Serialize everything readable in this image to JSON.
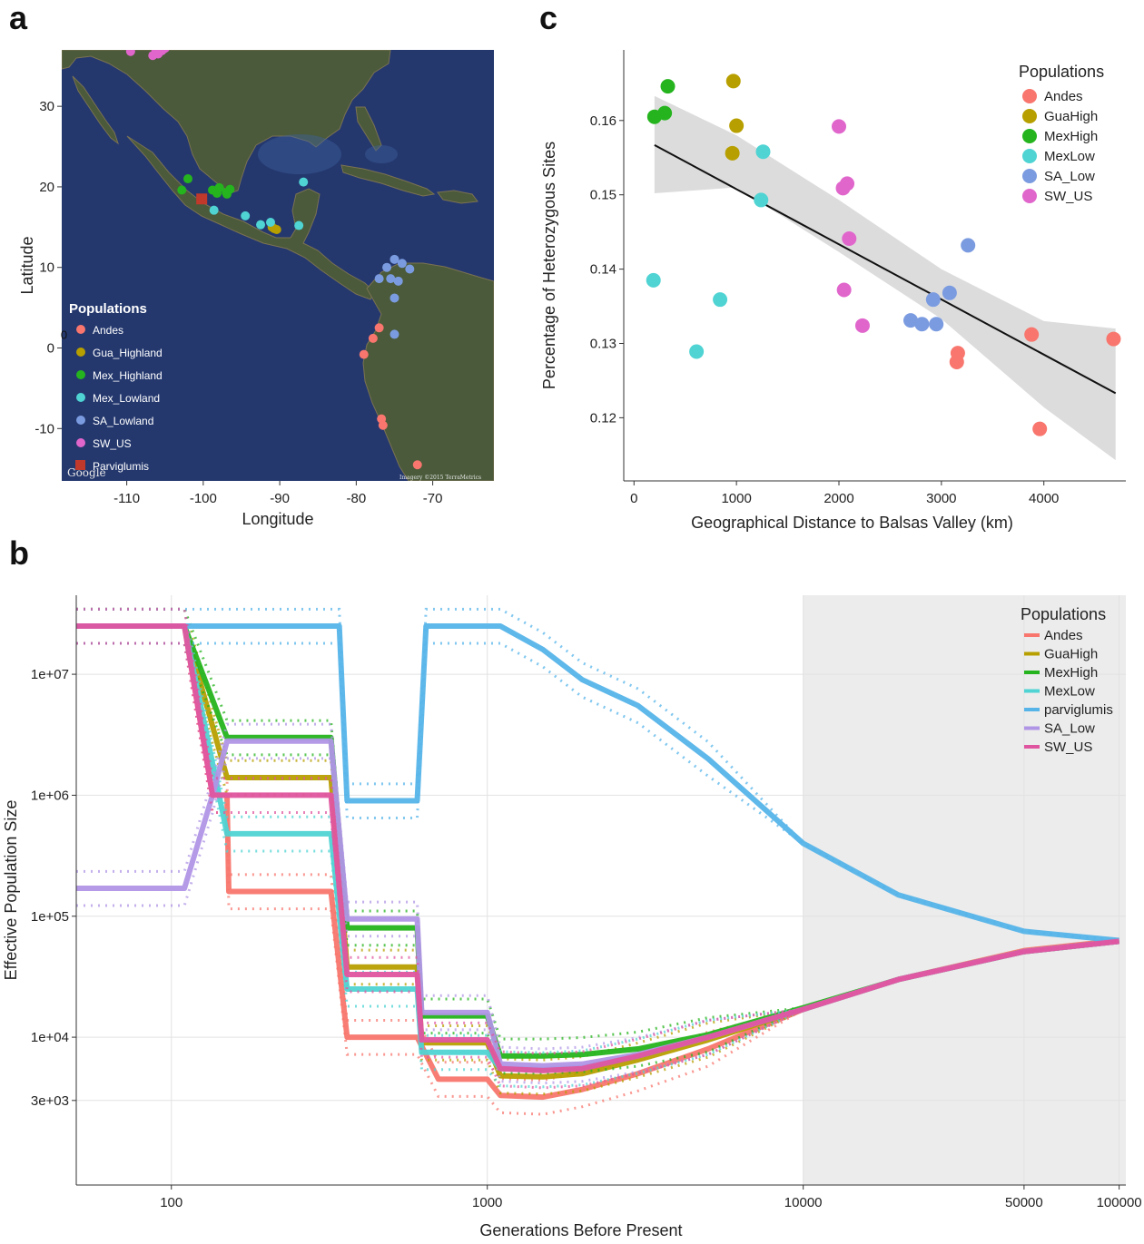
{
  "panels": {
    "a": {
      "letter": "a",
      "map_credit": "Google",
      "imagery_credit": "Imagery ©2015 TerraMetrics",
      "colors": {
        "ocean": "#24386e",
        "land": "#4a5a3a",
        "land_light": "#7b7253",
        "shallow": "#3d5f9c"
      },
      "legend": {
        "title": "Populations",
        "items": [
          {
            "label": "Andes",
            "color": "#f8766d",
            "shape": "circle"
          },
          {
            "label": "Gua_Highland",
            "color": "#b79f00",
            "shape": "circle"
          },
          {
            "label": "Mex_Highland",
            "color": "#25b41e",
            "shape": "circle"
          },
          {
            "label": "Mex_Lowland",
            "color": "#4fd3d3",
            "shape": "circle"
          },
          {
            "label": "SA_Lowland",
            "color": "#7b9be0",
            "shape": "circle"
          },
          {
            "label": "SW_US",
            "color": "#e066cc",
            "shape": "circle"
          },
          {
            "label": "Parviglumis",
            "color": "#c0392b",
            "shape": "square"
          }
        ]
      }
    },
    "b": {
      "letter": "b"
    },
    "c": {
      "letter": "c"
    }
  },
  "chart_data": [
    {
      "id": "a",
      "type": "scatter",
      "title": "",
      "xlabel": "Longitude",
      "ylabel": "Latitude",
      "xlim": [
        -118.5,
        -62
      ],
      "ylim": [
        -16.5,
        37
      ],
      "xticks": [
        -110,
        -100,
        -90,
        -80,
        -70
      ],
      "yticks": [
        -10,
        0,
        10,
        20,
        30
      ],
      "extra_label": {
        "text": "0",
        "x": -118.2,
        "y": 1.1
      },
      "series": [
        {
          "name": "Andes",
          "color": "#f8766d",
          "points": [
            [
              -77,
              2.5
            ],
            [
              -77.8,
              1.2
            ],
            [
              -79,
              -0.8
            ],
            [
              -76.7,
              -8.8
            ],
            [
              -76.5,
              -9.6
            ],
            [
              -72,
              -14.5
            ]
          ]
        },
        {
          "name": "Gua_Highland",
          "color": "#b79f00",
          "points": [
            [
              -91,
              15
            ],
            [
              -90.7,
              14.8
            ],
            [
              -90.4,
              14.7
            ]
          ]
        },
        {
          "name": "Mex_Highland",
          "color": "#25b41e",
          "points": [
            [
              -102,
              21
            ],
            [
              -102.8,
              19.6
            ],
            [
              -98.8,
              19.6
            ],
            [
              -97.9,
              19.9
            ],
            [
              -97,
              19.3
            ],
            [
              -96.5,
              19.7
            ],
            [
              -96.9,
              19.1
            ],
            [
              -98.2,
              19.2
            ]
          ]
        },
        {
          "name": "Mex_Lowland",
          "color": "#4fd3d3",
          "points": [
            [
              -98.6,
              17.1
            ],
            [
              -94.5,
              16.4
            ],
            [
              -92.5,
              15.3
            ],
            [
              -87.5,
              15.2
            ],
            [
              -86.9,
              20.6
            ],
            [
              -91.2,
              15.6
            ]
          ]
        },
        {
          "name": "SA_Lowland",
          "color": "#7b9be0",
          "points": [
            [
              -75,
              11
            ],
            [
              -76,
              10
            ],
            [
              -74,
              10.5
            ],
            [
              -77,
              8.6
            ],
            [
              -75.5,
              8.6
            ],
            [
              -74.5,
              8.3
            ],
            [
              -75,
              6.2
            ],
            [
              -75,
              1.7
            ],
            [
              -73,
              9.8
            ]
          ]
        },
        {
          "name": "SW_US",
          "color": "#e066cc",
          "points": [
            [
              -109.5,
              36.8
            ],
            [
              -106.6,
              36.3
            ],
            [
              -105.9,
              36.5
            ],
            [
              -105.4,
              36.9
            ],
            [
              -105,
              37.2
            ],
            [
              -106.2,
              37
            ]
          ]
        },
        {
          "name": "Parviglumis",
          "color": "#c0392b",
          "shape": "square",
          "points": [
            [
              -100.2,
              18.5
            ]
          ]
        }
      ]
    },
    {
      "id": "c",
      "type": "scatter",
      "title": "",
      "xlabel": "Geographical Distance to Balsas Valley (km)",
      "ylabel": "Percentage of Heterozygous Sites",
      "xlim": [
        -100,
        4800
      ],
      "ylim": [
        0.1115,
        0.1695
      ],
      "xticks": [
        0,
        1000,
        2000,
        3000,
        4000
      ],
      "yticks": [
        0.12,
        0.13,
        0.14,
        0.15,
        0.16
      ],
      "legend_title": "Populations",
      "legend_position": "top-right",
      "fit": {
        "x": [
          200,
          4700
        ],
        "y": [
          0.1567,
          0.1233
        ]
      },
      "confidence_band": {
        "x": [
          200,
          1000,
          2000,
          3000,
          4000,
          4700
        ],
        "lower": [
          0.1502,
          0.151,
          0.1423,
          0.1333,
          0.1214,
          0.1143
        ],
        "upper": [
          0.1633,
          0.158,
          0.1493,
          0.14,
          0.133,
          0.132
        ]
      },
      "series": [
        {
          "name": "Andes",
          "color": "#f8766d",
          "points": [
            [
              3880,
              0.1312
            ],
            [
              4680,
              0.1306
            ],
            [
              3160,
              0.1287
            ],
            [
              3150,
              0.1275
            ],
            [
              3960,
              0.1185
            ]
          ]
        },
        {
          "name": "GuaHigh",
          "color": "#b79f00",
          "points": [
            [
              970,
              0.1653
            ],
            [
              1000,
              0.1593
            ],
            [
              960,
              0.1556
            ]
          ]
        },
        {
          "name": "MexHigh",
          "color": "#25b41e",
          "points": [
            [
              330,
              0.1646
            ],
            [
              300,
              0.161
            ],
            [
              200,
              0.1605
            ]
          ]
        },
        {
          "name": "MexLow",
          "color": "#4fd3d3",
          "points": [
            [
              1260,
              0.1558
            ],
            [
              1240,
              0.1493
            ],
            [
              190,
              0.1385
            ],
            [
              840,
              0.1359
            ],
            [
              610,
              0.1289
            ]
          ]
        },
        {
          "name": "SA_Low",
          "color": "#7b9be0",
          "points": [
            [
              3260,
              0.1432
            ],
            [
              3080,
              0.1368
            ],
            [
              2920,
              0.1359
            ],
            [
              2700,
              0.1331
            ],
            [
              2810,
              0.1326
            ],
            [
              2950,
              0.1326
            ]
          ]
        },
        {
          "name": "SW_US",
          "color": "#e066cc",
          "points": [
            [
              2000,
              0.1592
            ],
            [
              2080,
              0.1515
            ],
            [
              2040,
              0.1509
            ],
            [
              2100,
              0.1441
            ],
            [
              2050,
              0.1372
            ],
            [
              2230,
              0.1324
            ]
          ]
        }
      ]
    },
    {
      "id": "b",
      "type": "line",
      "title": "",
      "xlabel": "Generations Before Present",
      "ylabel": "Effective Population Size",
      "x_scale": "log",
      "y_scale": "log",
      "xlim": [
        50,
        105000
      ],
      "ylim": [
        600,
        45000000
      ],
      "xticks": [
        100,
        1000,
        10000,
        50000,
        100000
      ],
      "xtick_labels": [
        "100",
        "1000",
        "10000",
        "50000",
        "100000"
      ],
      "yticks": [
        3000,
        10000,
        100000,
        1000000,
        10000000
      ],
      "ytick_labels": [
        "3e+03",
        "1e+04",
        "1e+05",
        "1e+06",
        "1e+07"
      ],
      "shaded_region_x": [
        10000,
        105000
      ],
      "legend_title": "Populations",
      "legend_position": "top-right",
      "series": [
        {
          "name": "Andes",
          "color": "#f8766d",
          "points": [
            [
              50,
              25000000
            ],
            [
              110,
              25000000
            ],
            [
              135,
              1000000
            ],
            [
              150,
              1000000
            ],
            [
              152,
              160000
            ],
            [
              320,
              160000
            ],
            [
              360,
              10000
            ],
            [
              600,
              10000
            ],
            [
              700,
              4500
            ],
            [
              1000,
              4500
            ],
            [
              1100,
              3300
            ],
            [
              1500,
              3200
            ],
            [
              2000,
              3700
            ],
            [
              3000,
              5000
            ],
            [
              5000,
              8000
            ],
            [
              10000,
              17000
            ],
            [
              20000,
              30000
            ],
            [
              50000,
              52000
            ],
            [
              100000,
              63000
            ]
          ]
        },
        {
          "name": "GuaHigh",
          "color": "#b79f00",
          "points": [
            [
              50,
              25000000
            ],
            [
              110,
              25000000
            ],
            [
              150,
              1400000
            ],
            [
              320,
              1400000
            ],
            [
              360,
              38000
            ],
            [
              600,
              38000
            ],
            [
              620,
              9000
            ],
            [
              1000,
              9000
            ],
            [
              1100,
              4800
            ],
            [
              1500,
              4700
            ],
            [
              2000,
              5000
            ],
            [
              3000,
              6500
            ],
            [
              5000,
              9500
            ],
            [
              10000,
              17000
            ],
            [
              20000,
              30000
            ],
            [
              50000,
              51000
            ],
            [
              100000,
              62000
            ]
          ]
        },
        {
          "name": "MexHigh",
          "color": "#25b41e",
          "points": [
            [
              50,
              25000000
            ],
            [
              110,
              25000000
            ],
            [
              150,
              3000000
            ],
            [
              320,
              3000000
            ],
            [
              360,
              80000
            ],
            [
              600,
              80000
            ],
            [
              620,
              15000
            ],
            [
              1000,
              15000
            ],
            [
              1100,
              7000
            ],
            [
              1500,
              7000
            ],
            [
              2000,
              7200
            ],
            [
              3000,
              8000
            ],
            [
              5000,
              10500
            ],
            [
              10000,
              17500
            ],
            [
              20000,
              30000
            ],
            [
              50000,
              51000
            ],
            [
              100000,
              62000
            ]
          ]
        },
        {
          "name": "MexLow",
          "color": "#4fd3d3",
          "points": [
            [
              50,
              25000000
            ],
            [
              110,
              25000000
            ],
            [
              150,
              480000
            ],
            [
              320,
              480000
            ],
            [
              360,
              25000
            ],
            [
              600,
              25000
            ],
            [
              620,
              7500
            ],
            [
              1000,
              7500
            ],
            [
              1100,
              5500
            ],
            [
              1500,
              5400
            ],
            [
              2000,
              5600
            ],
            [
              3000,
              7000
            ],
            [
              5000,
              10000
            ],
            [
              10000,
              17000
            ],
            [
              20000,
              30000
            ],
            [
              50000,
              51000
            ],
            [
              100000,
              62000
            ]
          ]
        },
        {
          "name": "parviglumis",
          "color": "#56b4e9",
          "points": [
            [
              50,
              25000000
            ],
            [
              340,
              25000000
            ],
            [
              360,
              900000
            ],
            [
              600,
              900000
            ],
            [
              640,
              25000000
            ],
            [
              1100,
              25000000
            ],
            [
              1500,
              16000000
            ],
            [
              2000,
              9000000
            ],
            [
              3000,
              5500000
            ],
            [
              5000,
              2000000
            ],
            [
              10000,
              400000
            ],
            [
              20000,
              150000
            ],
            [
              50000,
              75000
            ],
            [
              100000,
              63000
            ]
          ]
        },
        {
          "name": "SA_Low",
          "color": "#b095e6",
          "points": [
            [
              50,
              170000
            ],
            [
              110,
              170000
            ],
            [
              135,
              1000000
            ],
            [
              150,
              2800000
            ],
            [
              320,
              2800000
            ],
            [
              360,
              95000
            ],
            [
              600,
              95000
            ],
            [
              620,
              16000
            ],
            [
              1000,
              16000
            ],
            [
              1100,
              6000
            ],
            [
              1500,
              5800
            ],
            [
              2000,
              6000
            ],
            [
              3000,
              7200
            ],
            [
              5000,
              10000
            ],
            [
              10000,
              17000
            ],
            [
              20000,
              30000
            ],
            [
              50000,
              51000
            ],
            [
              100000,
              62000
            ]
          ]
        },
        {
          "name": "SW_US",
          "color": "#e0559f",
          "points": [
            [
              50,
              25000000
            ],
            [
              110,
              25000000
            ],
            [
              135,
              1000000
            ],
            [
              320,
              1000000
            ],
            [
              360,
              33000
            ],
            [
              600,
              33000
            ],
            [
              620,
              9500
            ],
            [
              1000,
              9500
            ],
            [
              1100,
              5500
            ],
            [
              1500,
              5300
            ],
            [
              2000,
              5500
            ],
            [
              3000,
              7000
            ],
            [
              5000,
              10000
            ],
            [
              10000,
              17000
            ],
            [
              20000,
              30000
            ],
            [
              50000,
              51000
            ],
            [
              100000,
              62000
            ]
          ]
        }
      ]
    }
  ]
}
